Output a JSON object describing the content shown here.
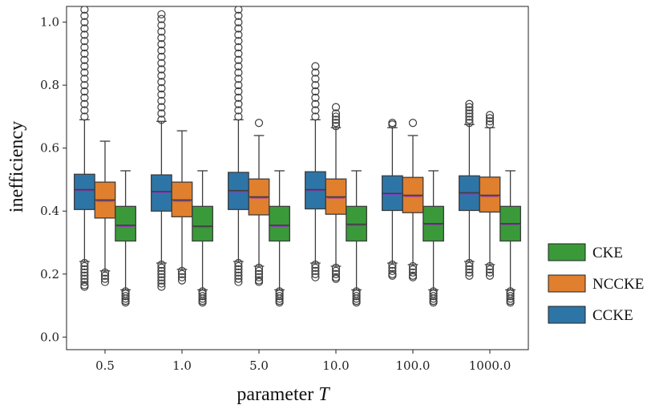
{
  "chart_data": {
    "type": "boxplot",
    "title": "",
    "xlabel_text": "parameter ",
    "xlabel_symbol": "T",
    "ylabel": "inefficiency",
    "ylim": [
      -0.04,
      1.05
    ],
    "yticks": [
      "0.0",
      "0.2",
      "0.4",
      "0.6",
      "0.8",
      "1.0"
    ],
    "categories": [
      "0.5",
      "1.0",
      "5.0",
      "10.0",
      "100.0",
      "1000.0"
    ],
    "series": [
      {
        "name": "CCKE",
        "color": "#2e75a7",
        "boxes": [
          {
            "q1": 0.405,
            "median": 0.468,
            "q3": 0.517,
            "whisker_low": 0.24,
            "whisker_high": 0.69,
            "outliers_low": [
              0.235,
              0.225,
              0.215,
              0.205,
              0.195,
              0.185,
              0.175,
              0.165,
              0.16
            ],
            "outliers_high": [
              0.7,
              0.72,
              0.74,
              0.76,
              0.78,
              0.8,
              0.82,
              0.84,
              0.86,
              0.88,
              0.9,
              0.92,
              0.94,
              0.96,
              0.98,
              1.0,
              1.02,
              1.04
            ]
          },
          {
            "q1": 0.4,
            "median": 0.462,
            "q3": 0.515,
            "whisker_low": 0.235,
            "whisker_high": 0.685,
            "outliers_low": [
              0.23,
              0.22,
              0.21,
              0.2,
              0.19,
              0.18,
              0.17,
              0.16
            ],
            "outliers_high": [
              0.69,
              0.71,
              0.73,
              0.75,
              0.77,
              0.79,
              0.81,
              0.83,
              0.85,
              0.87,
              0.89,
              0.91,
              0.93,
              0.95,
              0.97,
              0.99,
              1.01,
              1.025
            ]
          },
          {
            "q1": 0.405,
            "median": 0.465,
            "q3": 0.523,
            "whisker_low": 0.24,
            "whisker_high": 0.69,
            "outliers_low": [
              0.235,
              0.225,
              0.215,
              0.205,
              0.195,
              0.185,
              0.175
            ],
            "outliers_high": [
              0.7,
              0.72,
              0.74,
              0.76,
              0.78,
              0.8,
              0.82,
              0.84,
              0.86,
              0.88,
              0.9,
              0.92,
              0.94,
              0.96,
              0.98,
              1.0,
              1.02,
              1.04
            ]
          },
          {
            "q1": 0.407,
            "median": 0.468,
            "q3": 0.525,
            "whisker_low": 0.235,
            "whisker_high": 0.69,
            "outliers_low": [
              0.23,
              0.22,
              0.21,
              0.2,
              0.19
            ],
            "outliers_high": [
              0.7,
              0.72,
              0.74,
              0.76,
              0.78,
              0.8,
              0.82,
              0.84,
              0.86
            ]
          },
          {
            "q1": 0.402,
            "median": 0.456,
            "q3": 0.512,
            "whisker_low": 0.235,
            "whisker_high": 0.665,
            "outliers_low": [
              0.23,
              0.22,
              0.21,
              0.2,
              0.195
            ],
            "outliers_high": [
              0.675,
              0.68
            ]
          },
          {
            "q1": 0.402,
            "median": 0.458,
            "q3": 0.512,
            "whisker_low": 0.24,
            "whisker_high": 0.675,
            "outliers_low": [
              0.235,
              0.225,
              0.215,
              0.205,
              0.195
            ],
            "outliers_high": [
              0.68,
              0.69,
              0.7,
              0.71,
              0.72,
              0.73,
              0.74
            ]
          }
        ]
      },
      {
        "name": "NCCKE",
        "color": "#e07f2e",
        "boxes": [
          {
            "q1": 0.378,
            "median": 0.435,
            "q3": 0.492,
            "whisker_low": 0.21,
            "whisker_high": 0.622,
            "outliers_low": [
              0.205,
              0.195,
              0.185,
              0.175
            ],
            "outliers_high": []
          },
          {
            "q1": 0.382,
            "median": 0.435,
            "q3": 0.492,
            "whisker_low": 0.215,
            "whisker_high": 0.655,
            "outliers_low": [
              0.21,
              0.2,
              0.19,
              0.18
            ],
            "outliers_high": []
          },
          {
            "q1": 0.388,
            "median": 0.445,
            "q3": 0.502,
            "whisker_low": 0.225,
            "whisker_high": 0.64,
            "outliers_low": [
              0.22,
              0.21,
              0.2,
              0.19,
              0.18,
              0.175
            ],
            "outliers_high": [
              0.68
            ]
          },
          {
            "q1": 0.39,
            "median": 0.445,
            "q3": 0.502,
            "whisker_low": 0.225,
            "whisker_high": 0.665,
            "outliers_low": [
              0.22,
              0.21,
              0.2,
              0.19,
              0.185
            ],
            "outliers_high": [
              0.67,
              0.68,
              0.69,
              0.7,
              0.71,
              0.73
            ]
          },
          {
            "q1": 0.395,
            "median": 0.45,
            "q3": 0.507,
            "whisker_low": 0.23,
            "whisker_high": 0.64,
            "outliers_low": [
              0.225,
              0.215,
              0.205,
              0.195,
              0.19
            ],
            "outliers_high": [
              0.68
            ]
          },
          {
            "q1": 0.397,
            "median": 0.45,
            "q3": 0.508,
            "whisker_low": 0.23,
            "whisker_high": 0.665,
            "outliers_low": [
              0.225,
              0.215,
              0.205,
              0.195
            ],
            "outliers_high": [
              0.675,
              0.685,
              0.695,
              0.705
            ]
          }
        ]
      },
      {
        "name": "CKE",
        "color": "#3a9a3a",
        "boxes": [
          {
            "q1": 0.305,
            "median": 0.355,
            "q3": 0.415,
            "whisker_low": 0.15,
            "whisker_high": 0.528,
            "outliers_low": [
              0.145,
              0.138,
              0.13,
              0.122,
              0.115,
              0.11
            ],
            "outliers_high": []
          },
          {
            "q1": 0.305,
            "median": 0.352,
            "q3": 0.415,
            "whisker_low": 0.15,
            "whisker_high": 0.528,
            "outliers_low": [
              0.145,
              0.138,
              0.13,
              0.122,
              0.115,
              0.11
            ],
            "outliers_high": []
          },
          {
            "q1": 0.305,
            "median": 0.355,
            "q3": 0.415,
            "whisker_low": 0.15,
            "whisker_high": 0.528,
            "outliers_low": [
              0.145,
              0.138,
              0.13,
              0.122,
              0.115,
              0.11
            ],
            "outliers_high": []
          },
          {
            "q1": 0.305,
            "median": 0.358,
            "q3": 0.415,
            "whisker_low": 0.15,
            "whisker_high": 0.528,
            "outliers_low": [
              0.145,
              0.138,
              0.13,
              0.122,
              0.115,
              0.11
            ],
            "outliers_high": []
          },
          {
            "q1": 0.305,
            "median": 0.36,
            "q3": 0.415,
            "whisker_low": 0.15,
            "whisker_high": 0.528,
            "outliers_low": [
              0.145,
              0.138,
              0.13,
              0.122,
              0.115,
              0.11
            ],
            "outliers_high": []
          },
          {
            "q1": 0.305,
            "median": 0.36,
            "q3": 0.415,
            "whisker_low": 0.15,
            "whisker_high": 0.528,
            "outliers_low": [
              0.145,
              0.138,
              0.13,
              0.122,
              0.115,
              0.11
            ],
            "outliers_high": []
          }
        ]
      }
    ],
    "legend": {
      "placement": "outside-right-bottom",
      "items": [
        {
          "label": "CKE",
          "color": "#3a9a3a"
        },
        {
          "label": "NCCKE",
          "color": "#e07f2e"
        },
        {
          "label": "CCKE",
          "color": "#2e75a7"
        }
      ]
    },
    "median_color": "#9b30c8",
    "grid": false
  }
}
